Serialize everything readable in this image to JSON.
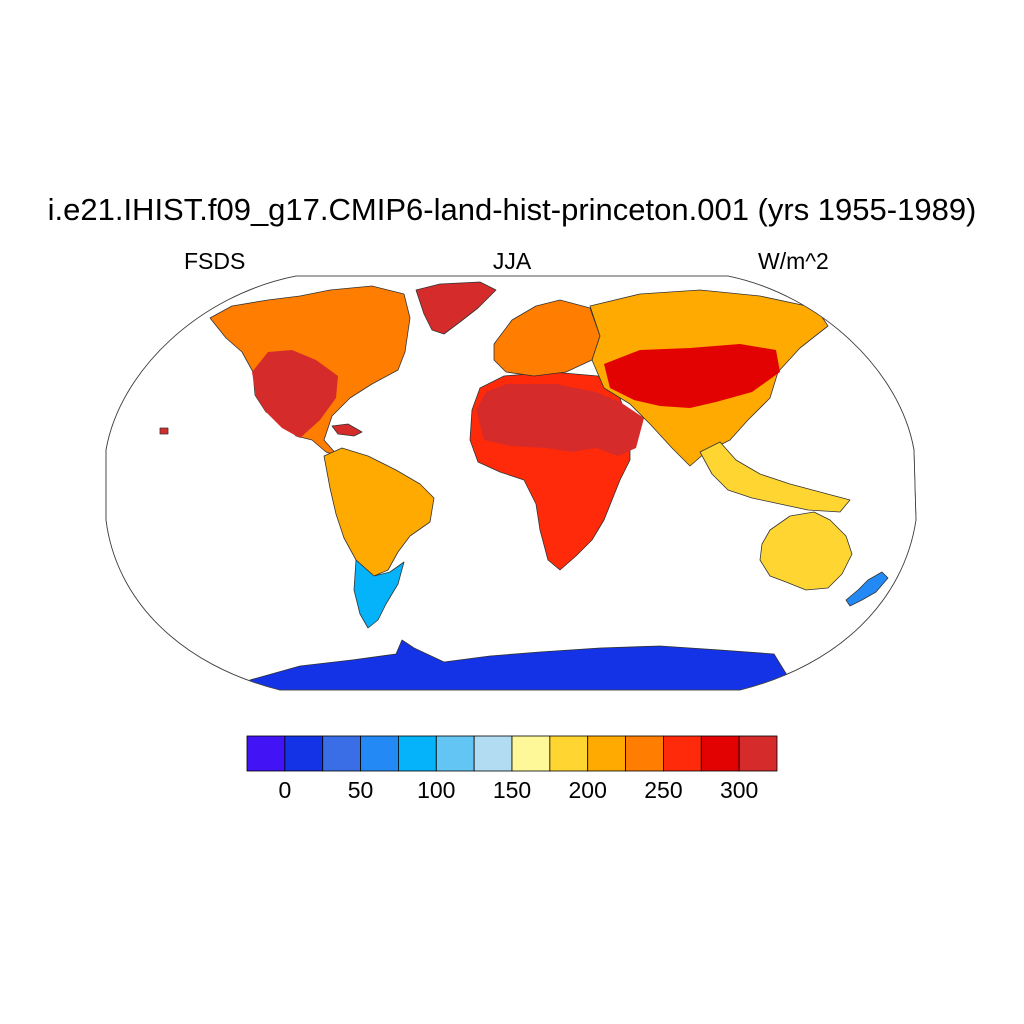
{
  "title": "i.e21.IHIST.f09_g17.CMIP6-land-hist-princeton.001 (yrs 1955-1989)",
  "variable": "FSDS",
  "season": "JJA",
  "units": "W/m^2",
  "colorbar": {
    "colors": [
      "#4213f5",
      "#1432e6",
      "#3a6ee6",
      "#238af5",
      "#05b3fa",
      "#63c5f3",
      "#b2dcf2",
      "#fff899",
      "#ffd531",
      "#ffaa00",
      "#ff7d00",
      "#ff2a0a",
      "#e30202",
      "#d62b2b"
    ],
    "labels": [
      "0",
      "50",
      "100",
      "150",
      "200",
      "250",
      "300"
    ]
  },
  "map": {
    "projection": "Robinson",
    "ocean_color": "#ffffff",
    "regions": [
      {
        "name": "North America",
        "level": 10
      },
      {
        "name": "US Southwest",
        "level": 13
      },
      {
        "name": "Greenland",
        "level": 13
      },
      {
        "name": "South America",
        "level": 9
      },
      {
        "name": "Patagonia",
        "level": 4
      },
      {
        "name": "Africa",
        "level": 11
      },
      {
        "name": "Sahara and Arabia",
        "level": 13
      },
      {
        "name": "Europe",
        "level": 10
      },
      {
        "name": "Asia",
        "level": 9
      },
      {
        "name": "Central Asia",
        "level": 12
      },
      {
        "name": "Southeast Asia",
        "level": 8
      },
      {
        "name": "Australia",
        "level": 8
      },
      {
        "name": "New Zealand",
        "level": 3
      },
      {
        "name": "Antarctica",
        "level": 1
      }
    ]
  }
}
